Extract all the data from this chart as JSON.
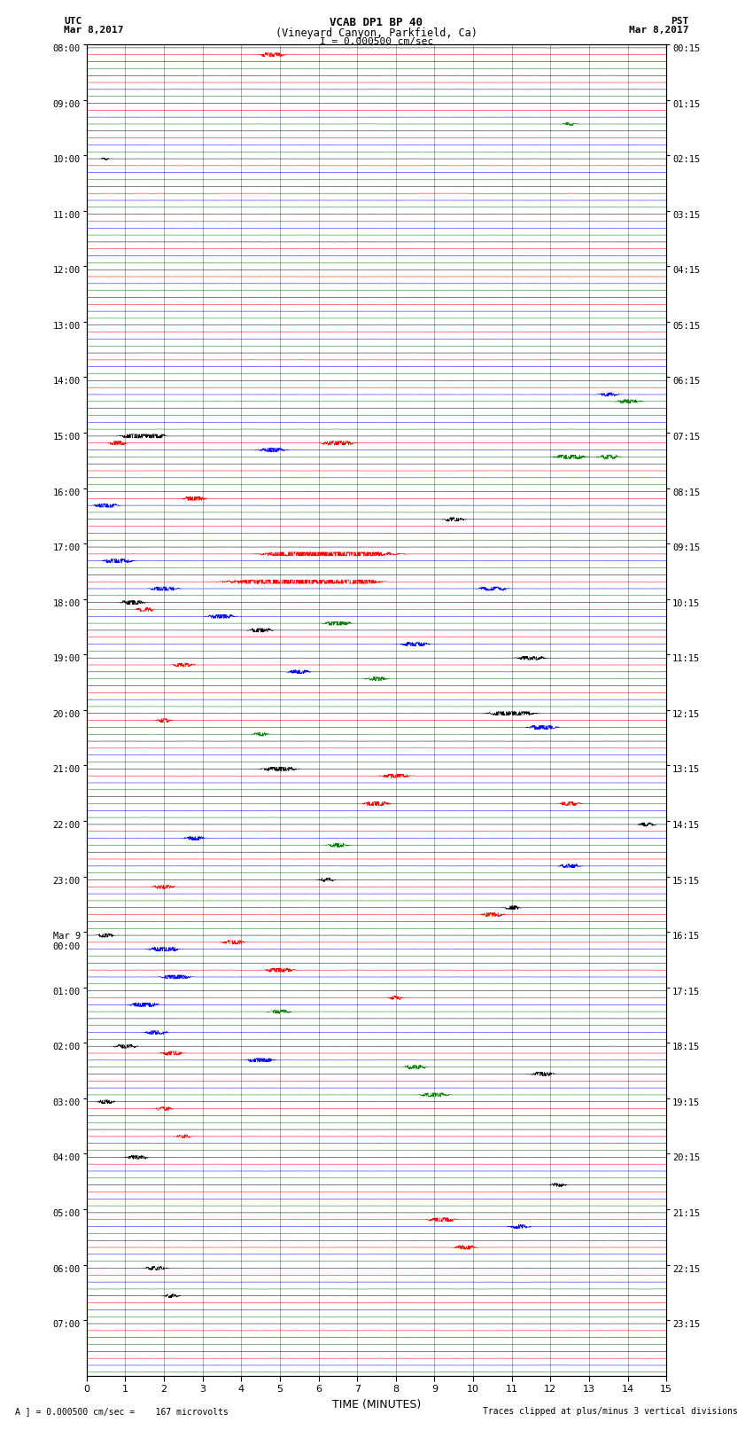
{
  "title_line1": "VCAB DP1 BP 40",
  "title_line2": "(Vineyard Canyon, Parkfield, Ca)",
  "scale_text": "I = 0.000500 cm/sec",
  "left_label_top": "UTC",
  "left_label_date": "Mar 8,2017",
  "right_label_top": "PST",
  "right_label_date": "Mar 8,2017",
  "bottom_label": "TIME (MINUTES)",
  "footnote_left": "A ] = 0.000500 cm/sec =    167 microvolts",
  "footnote_right": "Traces clipped at plus/minus 3 vertical divisions",
  "utc_times": [
    "08:00",
    "09:00",
    "10:00",
    "11:00",
    "12:00",
    "13:00",
    "14:00",
    "15:00",
    "16:00",
    "17:00",
    "18:00",
    "19:00",
    "20:00",
    "21:00",
    "22:00",
    "23:00",
    "Mar 9\n00:00",
    "01:00",
    "02:00",
    "03:00",
    "04:00",
    "05:00",
    "06:00",
    "07:00"
  ],
  "pst_times": [
    "00:15",
    "01:15",
    "02:15",
    "03:15",
    "04:15",
    "05:15",
    "06:15",
    "07:15",
    "08:15",
    "09:15",
    "10:15",
    "11:15",
    "12:15",
    "13:15",
    "14:15",
    "15:15",
    "16:15",
    "17:15",
    "18:15",
    "19:15",
    "20:15",
    "21:15",
    "22:15",
    "23:15"
  ],
  "colors": [
    "black",
    "red",
    "blue",
    "green",
    "black",
    "red",
    "blue",
    "green"
  ],
  "n_rows": 24,
  "traces_per_row": 8,
  "x_min": 0,
  "x_max": 15,
  "x_ticks": [
    0,
    1,
    2,
    3,
    4,
    5,
    6,
    7,
    8,
    9,
    10,
    11,
    12,
    13,
    14,
    15
  ],
  "bg_color": "white",
  "noise_base": 0.003,
  "seed": 42,
  "events": [
    [
      0,
      1,
      4.8,
      0.45,
      0.4
    ],
    [
      1,
      3,
      12.5,
      0.12,
      0.3
    ],
    [
      2,
      0,
      0.5,
      0.08,
      0.2
    ],
    [
      6,
      3,
      14.0,
      0.18,
      0.5
    ],
    [
      6,
      2,
      13.5,
      0.15,
      0.4
    ],
    [
      7,
      0,
      1.3,
      0.55,
      0.5
    ],
    [
      7,
      0,
      1.8,
      0.45,
      0.3
    ],
    [
      7,
      1,
      0.8,
      0.35,
      0.3
    ],
    [
      7,
      1,
      6.5,
      0.3,
      0.6
    ],
    [
      7,
      2,
      4.8,
      0.25,
      0.5
    ],
    [
      7,
      3,
      12.5,
      0.28,
      0.6
    ],
    [
      7,
      3,
      13.5,
      0.22,
      0.4
    ],
    [
      8,
      2,
      0.5,
      0.4,
      0.4
    ],
    [
      8,
      1,
      2.8,
      0.35,
      0.4
    ],
    [
      8,
      4,
      9.5,
      0.22,
      0.4
    ],
    [
      9,
      1,
      5.5,
      0.65,
      1.2
    ],
    [
      9,
      1,
      6.5,
      0.7,
      1.8
    ],
    [
      9,
      2,
      0.8,
      0.4,
      0.5
    ],
    [
      9,
      5,
      5.3,
      0.8,
      2.0
    ],
    [
      9,
      5,
      7.0,
      0.5,
      0.8
    ],
    [
      9,
      6,
      2.0,
      0.28,
      0.5
    ],
    [
      9,
      6,
      10.5,
      0.3,
      0.5
    ],
    [
      10,
      0,
      1.2,
      0.35,
      0.4
    ],
    [
      10,
      1,
      1.5,
      0.3,
      0.3
    ],
    [
      10,
      2,
      3.5,
      0.3,
      0.5
    ],
    [
      10,
      3,
      6.5,
      0.25,
      0.5
    ],
    [
      10,
      4,
      4.5,
      0.28,
      0.4
    ],
    [
      10,
      6,
      8.5,
      0.3,
      0.5
    ],
    [
      11,
      1,
      2.5,
      0.25,
      0.4
    ],
    [
      11,
      2,
      5.5,
      0.25,
      0.4
    ],
    [
      11,
      3,
      7.5,
      0.2,
      0.4
    ],
    [
      11,
      0,
      11.5,
      0.25,
      0.5
    ],
    [
      12,
      0,
      11.0,
      0.4,
      0.8
    ],
    [
      12,
      1,
      2.0,
      0.2,
      0.3
    ],
    [
      12,
      2,
      11.8,
      0.3,
      0.5
    ],
    [
      12,
      3,
      4.5,
      0.18,
      0.3
    ],
    [
      13,
      0,
      5.0,
      0.3,
      0.6
    ],
    [
      13,
      1,
      8.0,
      0.28,
      0.5
    ],
    [
      13,
      5,
      7.5,
      0.32,
      0.5
    ],
    [
      13,
      5,
      12.5,
      0.25,
      0.4
    ],
    [
      14,
      2,
      2.8,
      0.22,
      0.4
    ],
    [
      14,
      3,
      6.5,
      0.2,
      0.4
    ],
    [
      14,
      6,
      12.5,
      0.22,
      0.4
    ],
    [
      14,
      0,
      14.5,
      0.2,
      0.3
    ],
    [
      15,
      1,
      2.0,
      0.25,
      0.4
    ],
    [
      15,
      5,
      10.5,
      0.28,
      0.4
    ],
    [
      15,
      4,
      11.0,
      0.22,
      0.3
    ],
    [
      15,
      0,
      6.2,
      0.18,
      0.3
    ],
    [
      16,
      2,
      2.0,
      0.45,
      0.5
    ],
    [
      16,
      6,
      2.3,
      0.4,
      0.5
    ],
    [
      16,
      1,
      3.8,
      0.28,
      0.4
    ],
    [
      16,
      5,
      5.0,
      0.35,
      0.5
    ],
    [
      16,
      0,
      0.5,
      0.3,
      0.3
    ],
    [
      17,
      2,
      1.5,
      0.35,
      0.5
    ],
    [
      17,
      6,
      1.8,
      0.3,
      0.4
    ],
    [
      17,
      3,
      5.0,
      0.22,
      0.4
    ],
    [
      17,
      1,
      8.0,
      0.18,
      0.3
    ],
    [
      18,
      0,
      1.0,
      0.25,
      0.4
    ],
    [
      18,
      1,
      2.2,
      0.28,
      0.4
    ],
    [
      18,
      2,
      4.5,
      0.3,
      0.5
    ],
    [
      18,
      3,
      8.5,
      0.25,
      0.4
    ],
    [
      18,
      7,
      9.0,
      0.3,
      0.5
    ],
    [
      18,
      4,
      11.8,
      0.28,
      0.4
    ],
    [
      19,
      0,
      0.5,
      0.25,
      0.3
    ],
    [
      19,
      1,
      2.0,
      0.22,
      0.3
    ],
    [
      19,
      5,
      2.5,
      0.18,
      0.3
    ],
    [
      20,
      0,
      1.3,
      0.22,
      0.4
    ],
    [
      20,
      4,
      12.2,
      0.18,
      0.3
    ],
    [
      21,
      1,
      9.2,
      0.28,
      0.5
    ],
    [
      21,
      5,
      9.8,
      0.22,
      0.4
    ],
    [
      21,
      2,
      11.2,
      0.2,
      0.4
    ],
    [
      22,
      0,
      1.8,
      0.22,
      0.4
    ],
    [
      22,
      4,
      2.2,
      0.18,
      0.3
    ],
    [
      23,
      0,
      0.0,
      0.0,
      0.1
    ]
  ]
}
